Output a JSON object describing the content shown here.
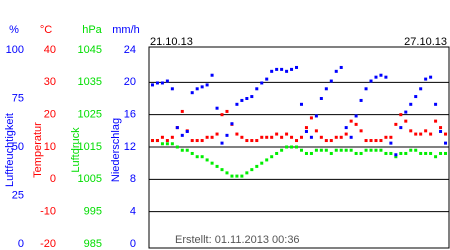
{
  "chart_data": {
    "type": "scatter",
    "start_label": "21.10.13",
    "end_label": "27.10.13",
    "footer": "Erstellt: 01.11.2013 00:36",
    "axes": [
      {
        "unit": "%",
        "label": "Luftfeuchtigkeit",
        "color": "#0000ff",
        "ylim": [
          0,
          100
        ],
        "yticks": [
          0,
          25,
          50,
          75,
          100
        ]
      },
      {
        "unit": "°C",
        "label": "Temperatur",
        "color": "#ff0000",
        "ylim": [
          -20,
          40
        ],
        "yticks": [
          -20,
          -10,
          0,
          10,
          20,
          30,
          40
        ]
      },
      {
        "unit": "hPa",
        "label": "Luftdruck",
        "color": "#00dd00",
        "ylim": [
          985,
          1045
        ],
        "yticks": [
          985,
          995,
          1005,
          1015,
          1025,
          1035,
          1045
        ]
      },
      {
        "unit": "mm/h",
        "label": "Niederschlag",
        "color": "#0000ff",
        "ylim": [
          0,
          24
        ],
        "yticks": [
          0,
          4,
          8,
          12,
          16,
          20,
          24
        ]
      }
    ],
    "series": [
      {
        "axis": 2,
        "color": "#00ee00",
        "values": [
          1017,
          1017,
          1016,
          1016,
          1016,
          1015,
          1014,
          1014,
          1013,
          1012,
          1012,
          1011,
          1010,
          1009,
          1008,
          1007,
          1006,
          1006,
          1006,
          1007,
          1008,
          1009,
          1010,
          1011,
          1012,
          1013,
          1014,
          1015,
          1015,
          1015,
          1014,
          1013,
          1013,
          1014,
          1014,
          1014,
          1013,
          1014,
          1014,
          1014,
          1014,
          1013,
          1013,
          1014,
          1014,
          1014,
          1014,
          1013,
          1013,
          1012,
          1013,
          1013,
          1014,
          1014,
          1013,
          1013,
          1013,
          1012,
          1013,
          1013
        ]
      },
      {
        "axis": 1,
        "color": "#ff0000",
        "values": [
          12,
          12,
          13,
          12,
          13,
          16,
          21,
          15,
          12,
          12,
          12,
          13,
          13,
          14,
          20,
          21,
          17,
          14,
          13,
          12,
          12,
          12,
          13,
          13,
          13,
          14,
          13,
          14,
          13,
          12,
          13,
          16,
          19,
          15,
          13,
          12,
          12,
          13,
          13,
          14,
          18,
          17,
          15,
          12,
          12,
          12,
          12,
          13,
          13,
          17,
          20,
          18,
          15,
          14,
          14,
          15,
          14,
          18,
          16,
          14
        ]
      },
      {
        "axis": 0,
        "color": "#0000ff",
        "values": [
          82,
          83,
          83,
          84,
          80,
          60,
          56,
          58,
          78,
          80,
          81,
          82,
          87,
          70,
          52,
          56,
          62,
          72,
          74,
          75,
          76,
          80,
          83,
          85,
          89,
          90,
          90,
          89,
          90,
          91,
          72,
          58,
          55,
          66,
          75,
          80,
          84,
          89,
          91,
          60,
          55,
          66,
          74,
          80,
          84,
          86,
          87,
          86,
          52,
          46,
          60,
          68,
          72,
          76,
          80,
          85,
          86,
          72,
          58,
          52
        ]
      }
    ]
  }
}
